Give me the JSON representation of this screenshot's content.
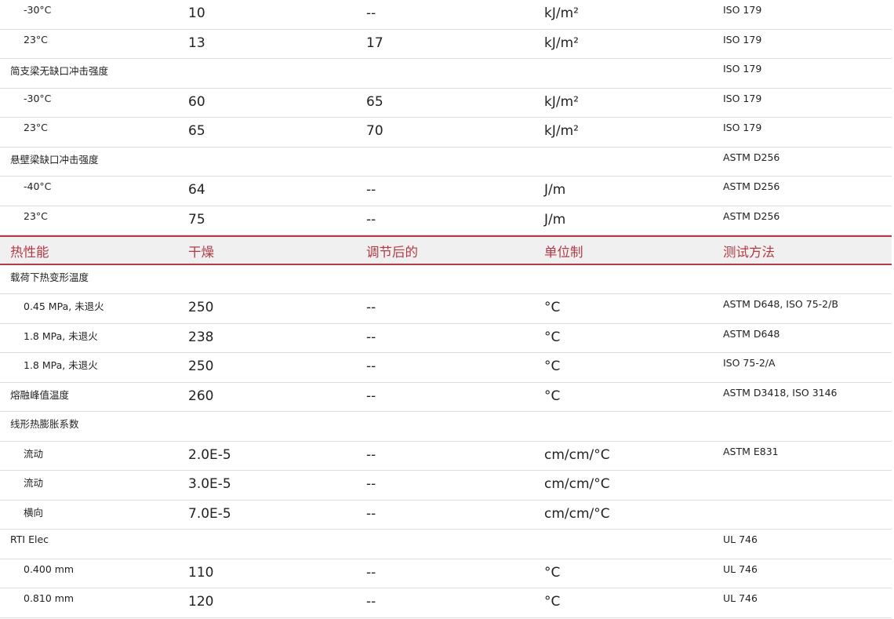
{
  "colors": {
    "accent": "#b23a44",
    "header_bg": "#f0f0f0"
  },
  "rows": [
    {
      "type": "sub",
      "label": "-30°C",
      "dry": "10",
      "cond": "--",
      "unit": "kJ/m²",
      "method": "ISO 179"
    },
    {
      "type": "sub",
      "label": "23°C",
      "dry": "13",
      "cond": "17",
      "unit": "kJ/m²",
      "method": "ISO 179"
    },
    {
      "type": "main",
      "label": "简支梁无缺口冲击强度",
      "dry": "",
      "cond": "",
      "unit": "",
      "method": "ISO 179"
    },
    {
      "type": "sub",
      "label": "-30°C",
      "dry": "60",
      "cond": "65",
      "unit": "kJ/m²",
      "method": "ISO 179"
    },
    {
      "type": "sub",
      "label": "23°C",
      "dry": "65",
      "cond": "70",
      "unit": "kJ/m²",
      "method": "ISO 179"
    },
    {
      "type": "main",
      "label": "悬壁梁缺口冲击强度",
      "dry": "",
      "cond": "",
      "unit": "",
      "method": "ASTM D256"
    },
    {
      "type": "sub",
      "label": "-40°C",
      "dry": "64",
      "cond": "--",
      "unit": "J/m",
      "method": "ASTM D256"
    },
    {
      "type": "sub",
      "label": "23°C",
      "dry": "75",
      "cond": "--",
      "unit": "J/m",
      "method": "ASTM D256"
    },
    {
      "type": "header",
      "label": "热性能",
      "dry": "干燥",
      "cond": "调节后的",
      "unit": "单位制",
      "method": "测试方法"
    },
    {
      "type": "main",
      "label": "载荷下热变形温度",
      "dry": "",
      "cond": "",
      "unit": "",
      "method": ""
    },
    {
      "type": "sub",
      "label": "0.45 MPa, 未退火",
      "dry": "250",
      "cond": "--",
      "unit": "°C",
      "method": "ASTM D648, ISO 75-2/B"
    },
    {
      "type": "sub",
      "label": "1.8 MPa, 未退火",
      "dry": "238",
      "cond": "--",
      "unit": "°C",
      "method": "ASTM D648"
    },
    {
      "type": "sub",
      "label": "1.8 MPa, 未退火",
      "dry": "250",
      "cond": "--",
      "unit": "°C",
      "method": "ISO 75-2/A"
    },
    {
      "type": "main",
      "label": "熔融峰值温度",
      "dry": "260",
      "cond": "--",
      "unit": "°C",
      "method": "ASTM D3418, ISO 3146"
    },
    {
      "type": "main",
      "label": "线形热膨胀系数",
      "dry": "",
      "cond": "",
      "unit": "",
      "method": ""
    },
    {
      "type": "sub",
      "label": "流动",
      "dry": "2.0E-5",
      "cond": "--",
      "unit": "cm/cm/°C",
      "method": "ASTM E831"
    },
    {
      "type": "sub",
      "label": "流动",
      "dry": "3.0E-5",
      "cond": "--",
      "unit": "cm/cm/°C",
      "method": ""
    },
    {
      "type": "sub",
      "label": "横向",
      "dry": "7.0E-5",
      "cond": "--",
      "unit": "cm/cm/°C",
      "method": ""
    },
    {
      "type": "main",
      "label": "RTI Elec",
      "dry": "",
      "cond": "",
      "unit": "",
      "method": "UL 746"
    },
    {
      "type": "sub",
      "label": "0.400 mm",
      "dry": "110",
      "cond": "--",
      "unit": "°C",
      "method": "UL 746"
    },
    {
      "type": "sub",
      "label": "0.810 mm",
      "dry": "120",
      "cond": "--",
      "unit": "°C",
      "method": "UL 746"
    }
  ]
}
